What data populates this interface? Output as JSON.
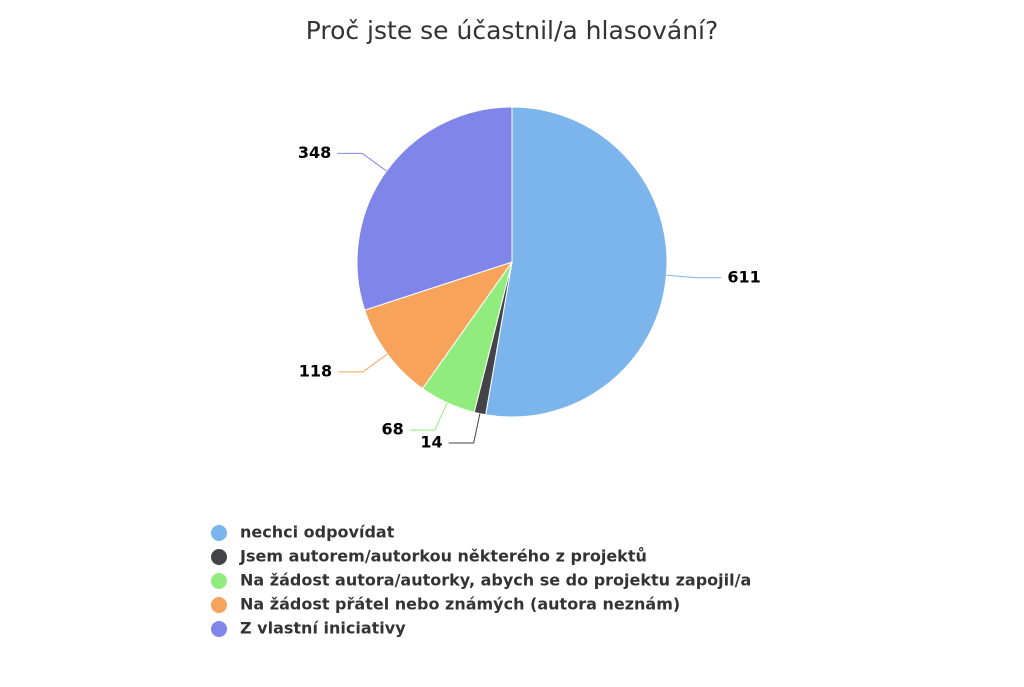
{
  "chart_data": {
    "type": "pie",
    "title": "Proč jste se účastnil/a hlasování?",
    "categories": [
      "nechci odpovídat",
      "Jsem autorem/autorkou některého z projektů",
      "Na žádost autora/autorky, abych se do projektu zapojil/a",
      "Na žádost přátel nebo známých (autora neznám)",
      "Z vlastní iniciativy"
    ],
    "values": [
      611,
      14,
      68,
      118,
      348
    ],
    "colors": [
      "#7cb5ec",
      "#434348",
      "#90ed7d",
      "#f7a35c",
      "#8085e9"
    ],
    "legend": "bottom"
  }
}
